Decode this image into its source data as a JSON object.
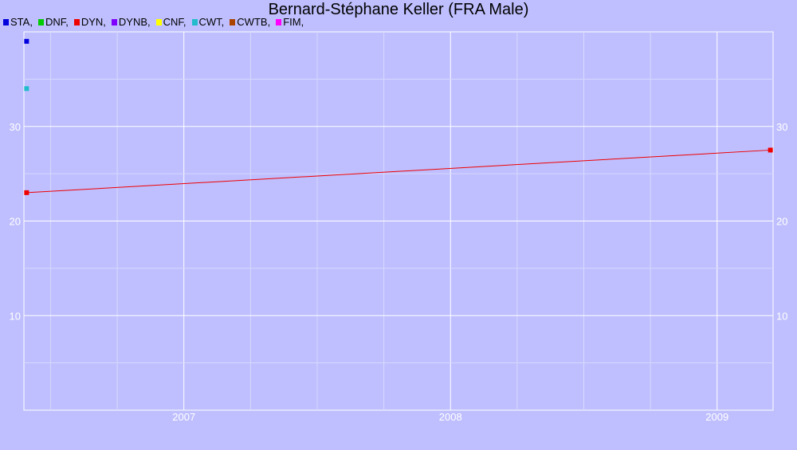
{
  "chart_data": {
    "type": "line",
    "title": "Bernard-Stéphane Keller (FRA Male)",
    "xlabel": "",
    "ylabel": "",
    "legend": [
      {
        "label": "STA,",
        "color": "#0000dd"
      },
      {
        "label": "DNF,",
        "color": "#00cc00"
      },
      {
        "label": "DYN,",
        "color": "#ee0000"
      },
      {
        "label": "DYNB,",
        "color": "#7f00ff"
      },
      {
        "label": "CNF,",
        "color": "#ffff00"
      },
      {
        "label": "CWT,",
        "color": "#22bbcc"
      },
      {
        "label": "CWTB,",
        "color": "#aa4400"
      },
      {
        "label": "FIM,",
        "color": "#ff00ff"
      }
    ],
    "x_ticks": [
      "2007",
      "2008",
      "2009"
    ],
    "y_ticks": [
      "10",
      "20",
      "30"
    ],
    "xlim": [
      2006.4,
      2009.21
    ],
    "ylim": [
      0,
      40
    ],
    "grid": true,
    "series": [
      {
        "name": "STA",
        "color": "#0000dd",
        "points": [
          [
            2006.41,
            39.0
          ]
        ]
      },
      {
        "name": "CWT",
        "color": "#22bbcc",
        "points": [
          [
            2006.41,
            34.0
          ]
        ]
      },
      {
        "name": "DYN",
        "color": "#ee0000",
        "points": [
          [
            2006.41,
            23.0
          ],
          [
            2009.2,
            27.5
          ]
        ]
      }
    ]
  }
}
